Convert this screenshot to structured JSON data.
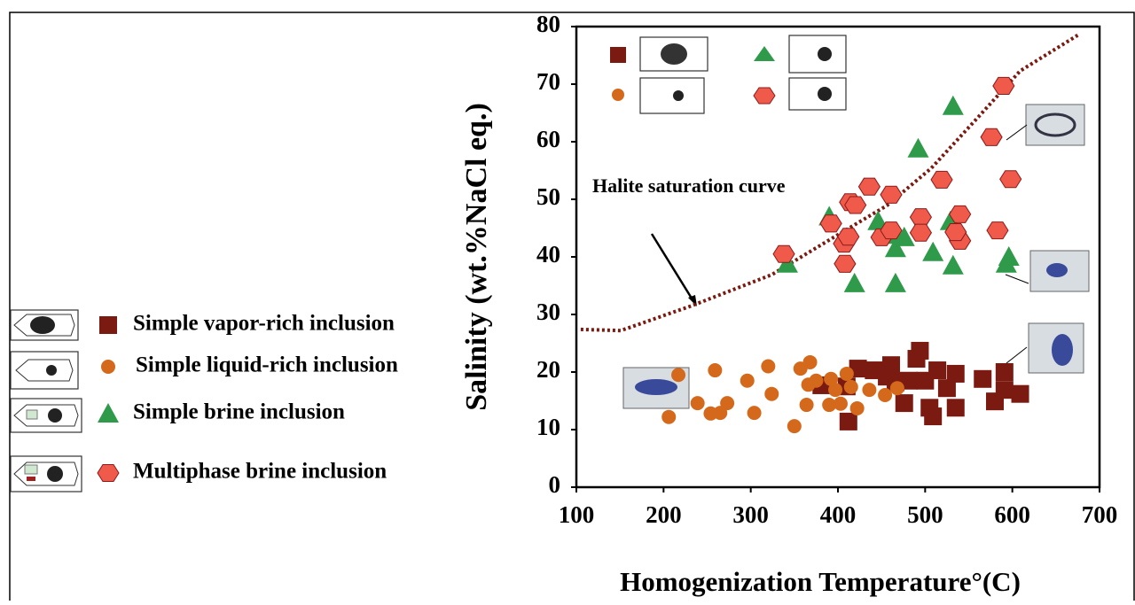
{
  "chart_data": {
    "type": "scatter",
    "x_label": "Homogenization Temperature°(C)",
    "y_label": "Salinity (wt.%NaCl eq.)",
    "xlim": [
      100,
      700
    ],
    "xticks": [
      100,
      200,
      300,
      400,
      500,
      600,
      700
    ],
    "ylim": [
      0,
      80
    ],
    "yticks": [
      0,
      10,
      20,
      30,
      40,
      50,
      60,
      70,
      80
    ],
    "series": [
      {
        "name": "Simple vapor-rich inclusion",
        "marker": "square",
        "color": "#7b1a10",
        "x": [
          381,
          410,
          412,
          423,
          441,
          461,
          466,
          476,
          490,
          494,
          500,
          505,
          509,
          514,
          525,
          535,
          535,
          566,
          580,
          591,
          591,
          609,
          456,
          481
        ],
        "values": [
          17.7,
          17.5,
          11.4,
          20.6,
          20.3,
          21.2,
          18.2,
          14.6,
          22.3,
          23.7,
          18.5,
          13.8,
          12.3,
          20.3,
          17.2,
          19.7,
          13.8,
          18.8,
          14.9,
          20,
          16.9,
          16.2,
          19.2,
          18.5
        ]
      },
      {
        "name": "Simple liquid-rich inclusion",
        "marker": "circle",
        "color": "#d4691c",
        "x": [
          206,
          217,
          239,
          254,
          259,
          265,
          273,
          296,
          304,
          320,
          324,
          350,
          357,
          364,
          366,
          368,
          375,
          392,
          397,
          390,
          403,
          410,
          422,
          436,
          454,
          468,
          415
        ],
        "values": [
          12.2,
          19.5,
          14.6,
          12.8,
          20.3,
          12.9,
          14.6,
          18.5,
          12.9,
          21,
          16.2,
          10.6,
          20.6,
          14.3,
          17.8,
          21.7,
          18.5,
          18.8,
          16.9,
          14.3,
          14.5,
          19.7,
          13.7,
          16.9,
          16,
          17.2,
          17.4
        ]
      },
      {
        "name": "Simple brine inclusion",
        "marker": "triangle",
        "color": "#2e9a4a",
        "x": [
          342,
          390,
          419,
          446,
          466,
          466,
          466,
          492,
          509,
          532,
          532,
          529,
          476,
          593,
          596
        ],
        "values": [
          38.8,
          47,
          35.4,
          46.2,
          43.8,
          41.5,
          35.4,
          58.8,
          40.8,
          38.5,
          66.2,
          46.2,
          43.4,
          38.8,
          40
        ]
      },
      {
        "name": "Multiphase brine inclusion",
        "marker": "hexagon",
        "color": "#f05a4a",
        "x": [
          338,
          392,
          408,
          407,
          412,
          414,
          420,
          436,
          450,
          461,
          461,
          495,
          495,
          519,
          540,
          540,
          535,
          576,
          583,
          590,
          598
        ],
        "values": [
          40.5,
          45.8,
          38.8,
          42.3,
          43.5,
          49.5,
          49,
          52.2,
          43.4,
          50.8,
          44.6,
          46.9,
          44.2,
          53.4,
          47.4,
          42.8,
          44.3,
          60.8,
          44.6,
          69.7,
          53.5
        ]
      }
    ],
    "curve": {
      "name": "Halite saturation curve",
      "color": "#7b1a10",
      "x": [
        105,
        151,
        232,
        324,
        405,
        456,
        507,
        558,
        609,
        675
      ],
      "y": [
        27.4,
        27.2,
        31.5,
        36.9,
        44.3,
        48.9,
        55.4,
        63.8,
        72.3,
        78.5
      ]
    }
  }
}
